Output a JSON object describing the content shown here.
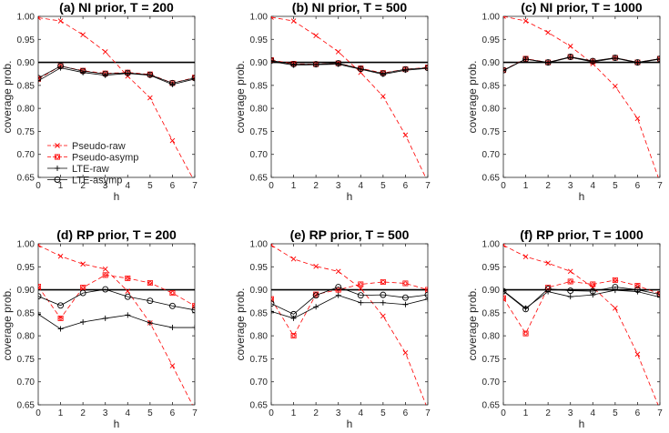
{
  "figure": {
    "xlabel": "h",
    "ylabel": "coverage prob.",
    "nominal_level": 0.9
  },
  "legend": {
    "location": "lower-left of panel (a)",
    "entries": [
      {
        "label": "Pseudo-raw",
        "color": "#ff0000",
        "marker": "x",
        "dash": true
      },
      {
        "label": "Pseudo-asymp",
        "color": "#ff0000",
        "marker": "square-circle",
        "dash": true
      },
      {
        "label": "LTE-raw",
        "color": "#000000",
        "marker": "plus",
        "dash": false
      },
      {
        "label": "LTE-asymp",
        "color": "#000000",
        "marker": "circle",
        "dash": false
      }
    ]
  },
  "chart_data": [
    {
      "type": "line",
      "title": "(a) NI prior, T = 200",
      "xlabel": "h",
      "ylabel": "coverage prob.",
      "ylim": [
        0.65,
        1.0
      ],
      "xlim": [
        0,
        7
      ],
      "yticks": [
        "0.65",
        "0.70",
        "0.75",
        "0.80",
        "0.85",
        "0.90",
        "0.95",
        "1.00"
      ],
      "xticks": [
        "0",
        "1",
        "2",
        "3",
        "4",
        "5",
        "6",
        "7"
      ],
      "x": [
        0,
        1,
        2,
        3,
        4,
        5,
        6,
        7
      ],
      "series": [
        {
          "name": "Pseudo-raw",
          "values": [
            0.997,
            0.99,
            0.96,
            0.923,
            0.87,
            0.823,
            0.73,
            0.64
          ]
        },
        {
          "name": "Pseudo-asymp",
          "values": [
            0.864,
            0.892,
            0.882,
            0.876,
            0.878,
            0.874,
            0.855,
            0.867
          ]
        },
        {
          "name": "LTE-raw",
          "values": [
            0.86,
            0.888,
            0.878,
            0.872,
            0.876,
            0.872,
            0.852,
            0.864
          ]
        },
        {
          "name": "LTE-asymp",
          "values": [
            0.866,
            0.892,
            0.881,
            0.875,
            0.877,
            0.873,
            0.855,
            0.866
          ]
        }
      ]
    },
    {
      "type": "line",
      "title": "(b) NI prior, T = 500",
      "xlabel": "h",
      "ylabel": "coverage prob.",
      "ylim": [
        0.65,
        1.0
      ],
      "xlim": [
        0,
        7
      ],
      "yticks": [
        "0.65",
        "0.70",
        "0.75",
        "0.80",
        "0.85",
        "0.90",
        "0.95",
        "1.00"
      ],
      "xticks": [
        "0",
        "1",
        "2",
        "3",
        "4",
        "5",
        "6",
        "7"
      ],
      "x": [
        0,
        1,
        2,
        3,
        4,
        5,
        6,
        7
      ],
      "series": [
        {
          "name": "Pseudo-raw",
          "values": [
            0.998,
            0.99,
            0.958,
            0.923,
            0.878,
            0.826,
            0.742,
            0.64
          ]
        },
        {
          "name": "Pseudo-asymp",
          "values": [
            0.905,
            0.897,
            0.896,
            0.898,
            0.887,
            0.877,
            0.885,
            0.889
          ]
        },
        {
          "name": "LTE-raw",
          "values": [
            0.902,
            0.894,
            0.895,
            0.896,
            0.885,
            0.874,
            0.883,
            0.887
          ]
        },
        {
          "name": "LTE-asymp",
          "values": [
            0.904,
            0.896,
            0.896,
            0.898,
            0.886,
            0.876,
            0.885,
            0.888
          ]
        }
      ]
    },
    {
      "type": "line",
      "title": "(c) NI prior, T = 1000",
      "xlabel": "h",
      "ylabel": "coverage prob.",
      "ylim": [
        0.65,
        1.0
      ],
      "xlim": [
        0,
        7
      ],
      "yticks": [
        "0.65",
        "0.70",
        "0.75",
        "0.80",
        "0.85",
        "0.90",
        "0.95",
        "1.00"
      ],
      "xticks": [
        "0",
        "1",
        "2",
        "3",
        "4",
        "5",
        "6",
        "7"
      ],
      "x": [
        0,
        1,
        2,
        3,
        4,
        5,
        6,
        7
      ],
      "series": [
        {
          "name": "Pseudo-raw",
          "values": [
            1.0,
            0.99,
            0.965,
            0.935,
            0.897,
            0.848,
            0.778,
            0.64
          ]
        },
        {
          "name": "Pseudo-asymp",
          "values": [
            0.883,
            0.908,
            0.9,
            0.912,
            0.902,
            0.91,
            0.9,
            0.908
          ]
        },
        {
          "name": "LTE-raw",
          "values": [
            0.882,
            0.907,
            0.899,
            0.911,
            0.901,
            0.909,
            0.899,
            0.907
          ]
        },
        {
          "name": "LTE-asymp",
          "values": [
            0.883,
            0.907,
            0.9,
            0.912,
            0.903,
            0.91,
            0.9,
            0.908
          ]
        }
      ]
    },
    {
      "type": "line",
      "title": "(d) RP prior, T = 200",
      "xlabel": "h",
      "ylabel": "coverage prob.",
      "ylim": [
        0.65,
        1.0
      ],
      "xlim": [
        0,
        7
      ],
      "yticks": [
        "0.65",
        "0.70",
        "0.75",
        "0.80",
        "0.85",
        "0.90",
        "0.95",
        "1.00"
      ],
      "xticks": [
        "0",
        "1",
        "2",
        "3",
        "4",
        "5",
        "6",
        "7"
      ],
      "x": [
        0,
        1,
        2,
        3,
        4,
        5,
        6,
        7
      ],
      "series": [
        {
          "name": "Pseudo-raw",
          "values": [
            0.997,
            0.973,
            0.956,
            0.945,
            0.897,
            0.828,
            0.735,
            0.64
          ]
        },
        {
          "name": "Pseudo-asymp",
          "values": [
            0.907,
            0.838,
            0.905,
            0.932,
            0.925,
            0.915,
            0.893,
            0.865
          ]
        },
        {
          "name": "LTE-raw",
          "values": [
            0.847,
            0.815,
            0.83,
            0.838,
            0.845,
            0.828,
            0.818,
            0.818
          ]
        },
        {
          "name": "LTE-asymp",
          "values": [
            0.886,
            0.866,
            0.893,
            0.901,
            0.885,
            0.876,
            0.865,
            0.856
          ]
        }
      ]
    },
    {
      "type": "line",
      "title": "(e) RP prior, T = 500",
      "xlabel": "h",
      "ylabel": "coverage prob.",
      "ylim": [
        0.65,
        1.0
      ],
      "xlim": [
        0,
        7
      ],
      "yticks": [
        "0.65",
        "0.70",
        "0.75",
        "0.80",
        "0.85",
        "0.90",
        "0.95",
        "1.00"
      ],
      "xticks": [
        "0",
        "1",
        "2",
        "3",
        "4",
        "5",
        "6",
        "7"
      ],
      "x": [
        0,
        1,
        2,
        3,
        4,
        5,
        6,
        7
      ],
      "series": [
        {
          "name": "Pseudo-raw",
          "values": [
            0.997,
            0.967,
            0.951,
            0.94,
            0.903,
            0.843,
            0.763,
            0.64
          ]
        },
        {
          "name": "Pseudo-asymp",
          "values": [
            0.88,
            0.8,
            0.89,
            0.9,
            0.912,
            0.917,
            0.914,
            0.9
          ]
        },
        {
          "name": "LTE-raw",
          "values": [
            0.853,
            0.838,
            0.863,
            0.888,
            0.872,
            0.872,
            0.868,
            0.88
          ]
        },
        {
          "name": "LTE-asymp",
          "values": [
            0.87,
            0.847,
            0.888,
            0.906,
            0.888,
            0.889,
            0.883,
            0.889
          ]
        }
      ]
    },
    {
      "type": "line",
      "title": "(f) RP prior, T = 1000",
      "xlabel": "h",
      "ylabel": "coverage prob.",
      "ylim": [
        0.65,
        1.0
      ],
      "xlim": [
        0,
        7
      ],
      "yticks": [
        "0.65",
        "0.70",
        "0.75",
        "0.80",
        "0.85",
        "0.90",
        "0.95",
        "1.00"
      ],
      "xticks": [
        "0",
        "1",
        "2",
        "3",
        "4",
        "5",
        "6",
        "7"
      ],
      "x": [
        0,
        1,
        2,
        3,
        4,
        5,
        6,
        7
      ],
      "series": [
        {
          "name": "Pseudo-raw",
          "values": [
            0.997,
            0.972,
            0.958,
            0.94,
            0.905,
            0.86,
            0.76,
            0.64
          ]
        },
        {
          "name": "Pseudo-asymp",
          "values": [
            0.882,
            0.805,
            0.905,
            0.918,
            0.912,
            0.921,
            0.909,
            0.891
          ]
        },
        {
          "name": "LTE-raw",
          "values": [
            0.898,
            0.86,
            0.896,
            0.885,
            0.889,
            0.899,
            0.896,
            0.884
          ]
        },
        {
          "name": "LTE-asymp",
          "values": [
            0.897,
            0.858,
            0.902,
            0.898,
            0.897,
            0.906,
            0.9,
            0.89
          ]
        }
      ]
    }
  ]
}
